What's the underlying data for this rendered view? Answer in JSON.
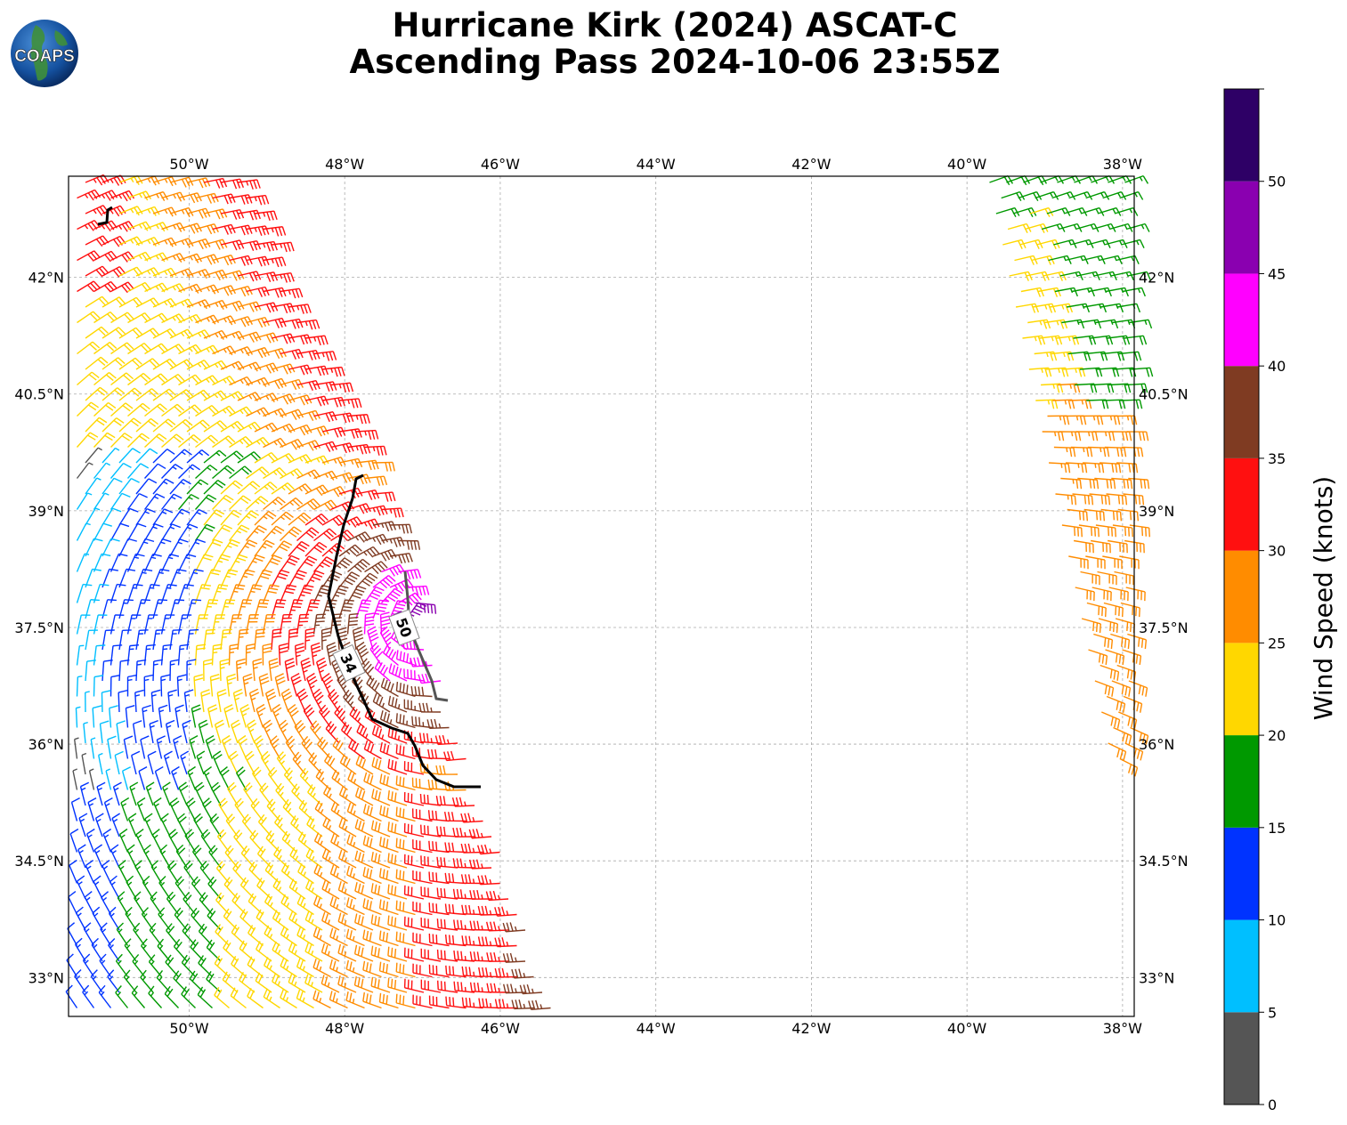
{
  "title": {
    "line1": "Hurricane Kirk (2024) ASCAT-C",
    "line2": "Ascending Pass 2024-10-06 23:55Z"
  },
  "logo": {
    "text": "COAPS",
    "icon": "globe-logo-icon"
  },
  "map": {
    "lon_range": [
      -51.55,
      -37.85
    ],
    "lat_range": [
      32.5,
      43.3
    ],
    "x_ticks": [
      "50°W",
      "48°W",
      "46°W",
      "44°W",
      "42°W",
      "40°W",
      "38°W"
    ],
    "x_tick_values": [
      -50,
      -48,
      -46,
      -44,
      -42,
      -40,
      -38
    ],
    "y_ticks": [
      "42°N",
      "40.5°N",
      "39°N",
      "37.5°N",
      "36°N",
      "34.5°N",
      "33°N"
    ],
    "y_tick_values": [
      42,
      40.5,
      39,
      37.5,
      36,
      34.5,
      33
    ],
    "grid": true,
    "contours": [
      {
        "label": "34",
        "color": "#000000"
      },
      {
        "label": "50",
        "color": "#555555"
      }
    ]
  },
  "colorbar": {
    "label": "Wind Speed (knots)",
    "ticks": [
      "0",
      "5",
      "10",
      "15",
      "20",
      "25",
      "30",
      "35",
      "40",
      "45",
      "50"
    ],
    "bins": [
      {
        "range": [
          0,
          5
        ],
        "color": "#555555"
      },
      {
        "range": [
          5,
          10
        ],
        "color": "#00bfff"
      },
      {
        "range": [
          10,
          15
        ],
        "color": "#0033ff"
      },
      {
        "range": [
          15,
          20
        ],
        "color": "#009900"
      },
      {
        "range": [
          20,
          25
        ],
        "color": "#ffd700"
      },
      {
        "range": [
          25,
          30
        ],
        "color": "#ff8c00"
      },
      {
        "range": [
          30,
          35
        ],
        "color": "#ff1010"
      },
      {
        "range": [
          35,
          40
        ],
        "color": "#7f3b22"
      },
      {
        "range": [
          40,
          45
        ],
        "color": "#ff00ff"
      },
      {
        "range": [
          45,
          50
        ],
        "color": "#8a00b0"
      },
      {
        "range": [
          50,
          55
        ],
        "color": "#2e0066"
      }
    ]
  }
}
